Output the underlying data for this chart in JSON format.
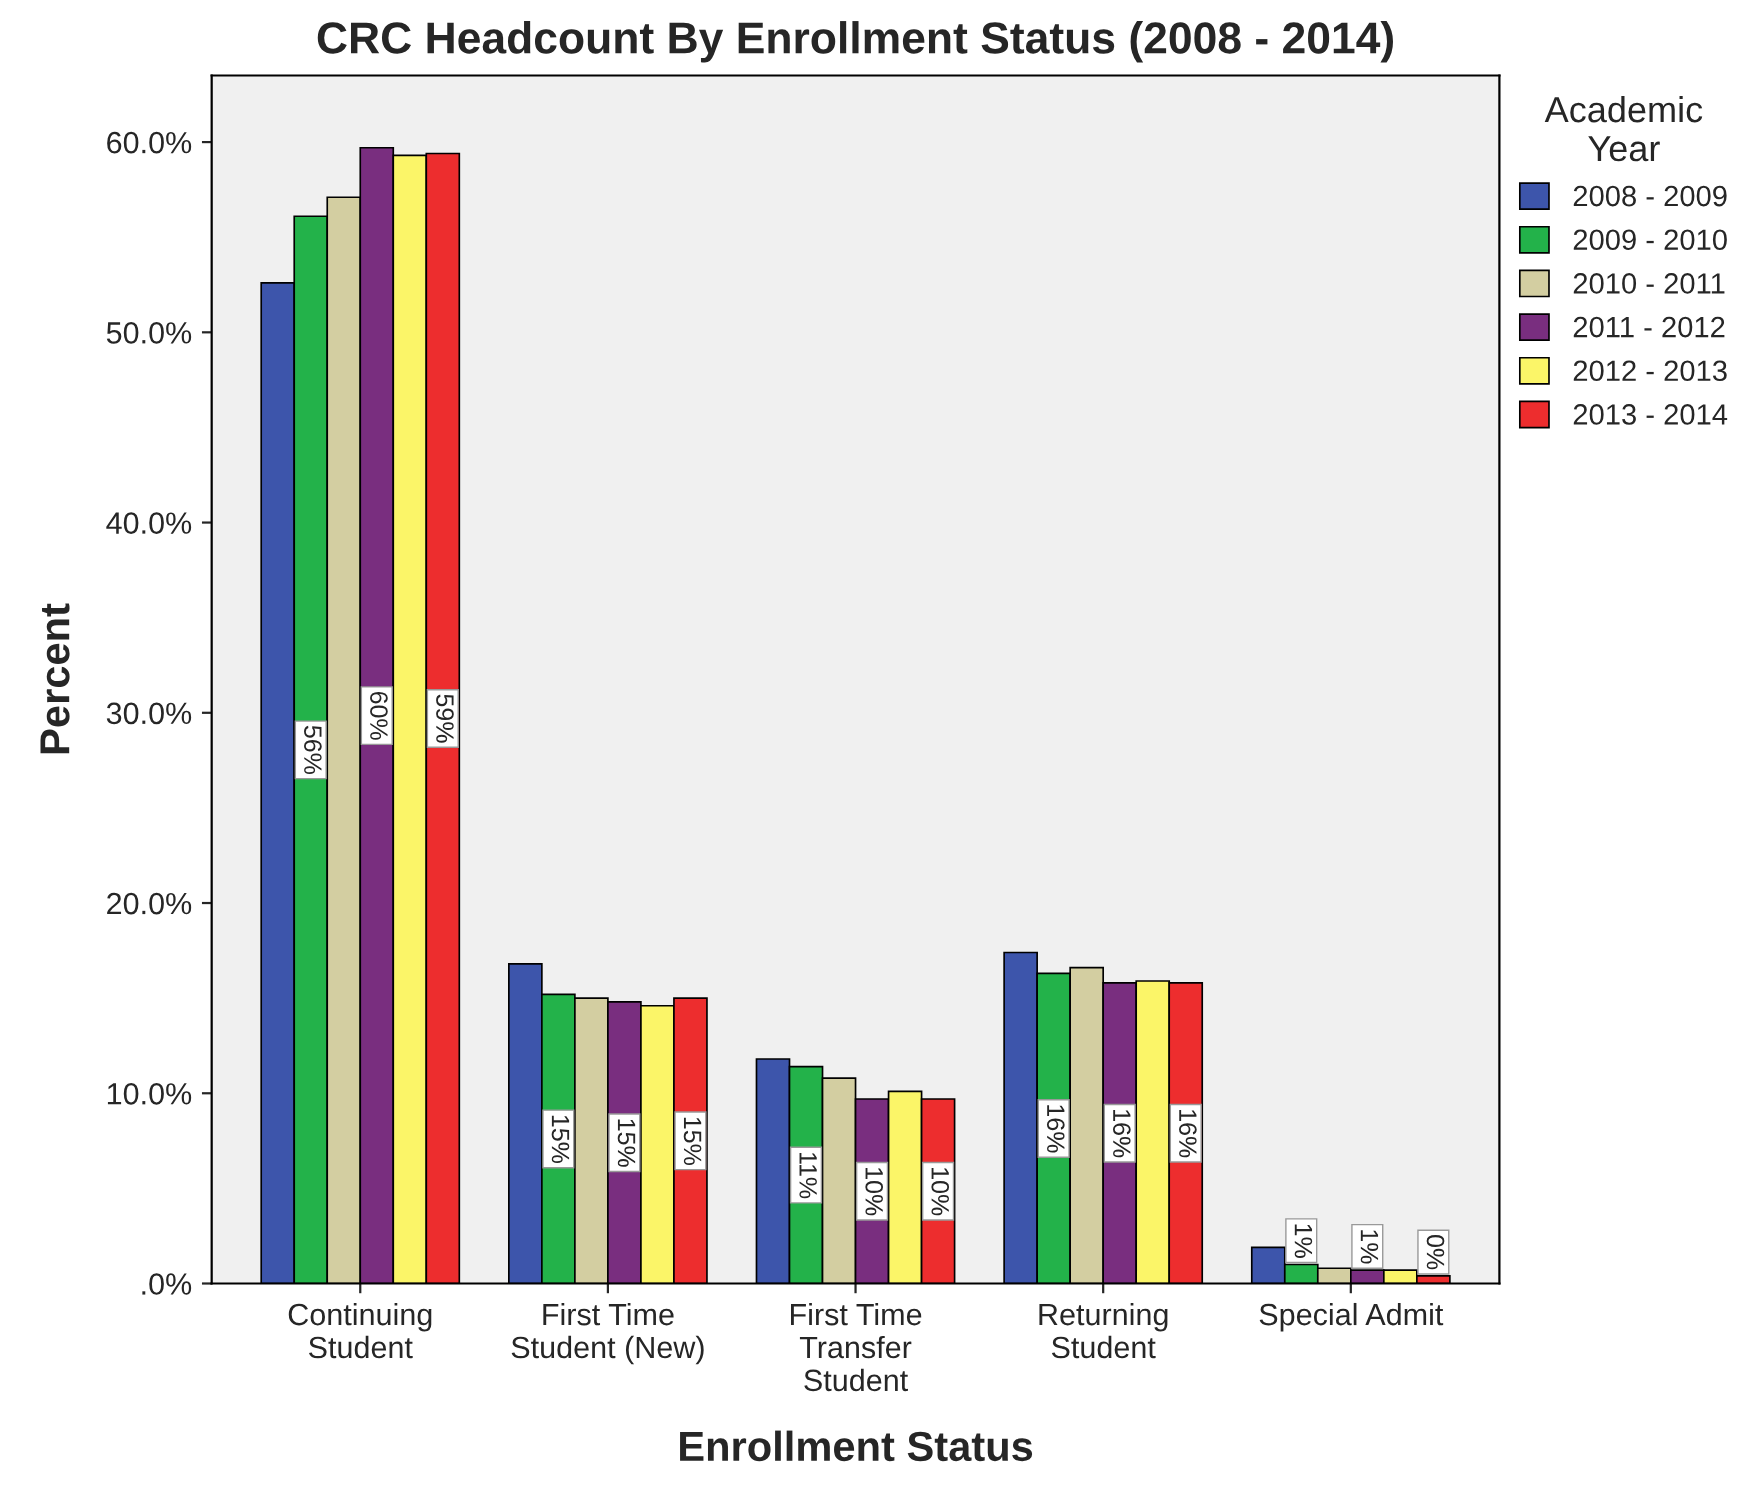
{
  "chart_data": {
    "type": "bar",
    "title": "CRC Headcount By Enrollment Status (2008 - 2014)",
    "xlabel": "Enrollment Status",
    "ylabel": "Percent",
    "legend_title": "Academic\nYear",
    "legend": "right",
    "categories": [
      "Continuing\nStudent",
      "First Time\nStudent (New)",
      "First Time\nTransfer\nStudent",
      "Returning\nStudent",
      "Special Admit"
    ],
    "series": [
      {
        "name": "2008 - 2009",
        "color": "#3d55ab",
        "values": [
          52.6,
          16.8,
          11.8,
          17.4,
          1.9
        ]
      },
      {
        "name": "2009 - 2010",
        "color": "#23b24a",
        "values": [
          56.1,
          15.2,
          11.4,
          16.3,
          1.0
        ],
        "value_labels": [
          "56%",
          "15%",
          "11%",
          "16%",
          "1%"
        ]
      },
      {
        "name": "2010 - 2011",
        "color": "#d3cea1",
        "values": [
          57.1,
          15.0,
          10.8,
          16.6,
          0.8
        ]
      },
      {
        "name": "2011 - 2012",
        "color": "#792e7f",
        "values": [
          59.7,
          14.8,
          9.7,
          15.8,
          0.7
        ],
        "value_labels": [
          "60%",
          "15%",
          "10%",
          "16%",
          "1%"
        ]
      },
      {
        "name": "2012 - 2013",
        "color": "#fbf568",
        "values": [
          59.3,
          14.6,
          10.1,
          15.9,
          0.7
        ]
      },
      {
        "name": "2013 - 2014",
        "color": "#ed2d2e",
        "values": [
          59.4,
          15.0,
          9.7,
          15.8,
          0.4
        ],
        "value_labels": [
          "59%",
          "15%",
          "10%",
          "16%",
          "0%"
        ]
      }
    ],
    "ylim": [
      0,
      63.5
    ],
    "yticks": [
      {
        "value": 0,
        "label": ".0%"
      },
      {
        "value": 10,
        "label": "10.0%"
      },
      {
        "value": 20,
        "label": "20.0%"
      },
      {
        "value": 30,
        "label": "30.0%"
      },
      {
        "value": 40,
        "label": "40.0%"
      },
      {
        "value": 50,
        "label": "50.0%"
      },
      {
        "value": 60,
        "label": "60.0%"
      }
    ],
    "grid": false
  }
}
